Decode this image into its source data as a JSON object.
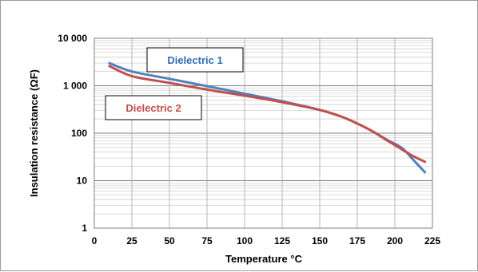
{
  "chart_data": {
    "type": "line",
    "title": "",
    "xlabel": "Temperature °C",
    "ylabel": "Insulation resistance (ΩF)",
    "xlim": [
      0,
      225
    ],
    "ylim": [
      1,
      10000
    ],
    "yscale": "log",
    "grid": true,
    "x_ticks": [
      "0",
      "25",
      "50",
      "75",
      "100",
      "125",
      "150",
      "175",
      "200",
      "225"
    ],
    "y_ticks": [
      "1",
      "10",
      "100",
      "1 000",
      "10 000"
    ],
    "series": [
      {
        "name": "Dielectric 1",
        "color": "#4f81bd",
        "x": [
          10,
          25,
          50,
          75,
          100,
          125,
          150,
          165,
          175,
          185,
          195,
          205,
          212,
          220
        ],
        "y": [
          3000,
          2000,
          1400,
          980,
          680,
          470,
          310,
          220,
          160,
          110,
          72,
          48,
          28,
          15
        ]
      },
      {
        "name": "Dielectric 2",
        "color": "#c0504d",
        "x": [
          10,
          25,
          50,
          75,
          100,
          125,
          150,
          165,
          175,
          185,
          195,
          205,
          212,
          220
        ],
        "y": [
          2600,
          1600,
          1150,
          830,
          620,
          450,
          310,
          220,
          160,
          110,
          70,
          45,
          33,
          25
        ]
      }
    ],
    "legend_labels": [
      "Dielectric 1",
      "Dielectric 2"
    ]
  }
}
